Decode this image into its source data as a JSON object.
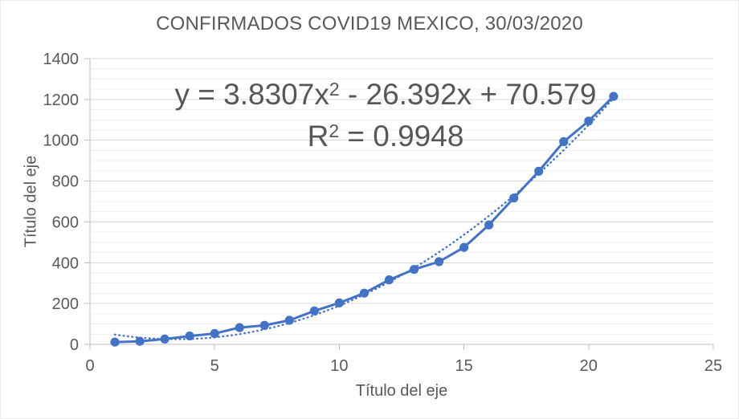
{
  "title": "CONFIRMADOS COVID19 MEXICO, 30/03/2020",
  "annotation": {
    "eq_part1": "y = 3.8307x",
    "eq_sup": "2",
    "eq_part2": " - 26.392x + 70.579",
    "r2_part1": "R",
    "r2_sup": "2",
    "r2_part2": " = 0.9948"
  },
  "axes": {
    "x_title": "Título del eje",
    "y_title": "Título del eje"
  },
  "colors": {
    "series": "#4472C4",
    "text": "#595959",
    "grid_major": "#D9D9D9",
    "grid_minor": "#F1F1F1",
    "axis_line": "#BFBFBF"
  },
  "chart_data": {
    "type": "line",
    "title": "CONFIRMADOS COVID19 MEXICO, 30/03/2020",
    "xlabel": "Título del eje",
    "ylabel": "Título del eje",
    "x": [
      1,
      2,
      3,
      4,
      5,
      6,
      7,
      8,
      9,
      10,
      11,
      12,
      13,
      14,
      15,
      16,
      17,
      18,
      19,
      20,
      21
    ],
    "y": [
      11,
      15,
      26,
      41,
      53,
      82,
      93,
      118,
      164,
      203,
      251,
      316,
      367,
      405,
      475,
      585,
      717,
      848,
      993,
      1094,
      1215
    ],
    "marker": "circle",
    "legend": "none",
    "xlim": [
      0,
      25
    ],
    "ylim": [
      0,
      1400
    ],
    "x_ticks": [
      0,
      5,
      10,
      15,
      20,
      25
    ],
    "y_ticks": [
      0,
      200,
      400,
      600,
      800,
      1000,
      1200,
      1400
    ],
    "y_minor_unit": 50,
    "grid": {
      "horizontal_major": true,
      "horizontal_minor": true,
      "vertical": false
    },
    "trendline": {
      "type": "polynomial",
      "degree": 2,
      "coefficients": {
        "a": 3.8307,
        "b": -26.392,
        "c": 70.579
      },
      "equation_label": "y = 3.8307x² - 26.392x + 70.579",
      "r_squared_label": "R² = 0.9948",
      "style": "dotted",
      "x_range": [
        1,
        21
      ]
    }
  }
}
